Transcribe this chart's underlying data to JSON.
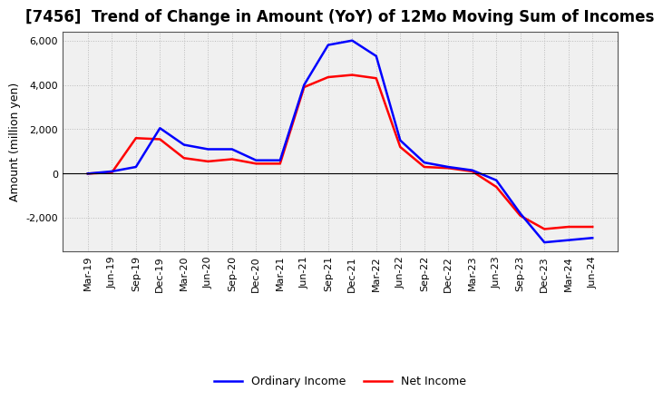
{
  "title": "[7456]  Trend of Change in Amount (YoY) of 12Mo Moving Sum of Incomes",
  "ylabel": "Amount (million yen)",
  "xlabels": [
    "Mar-19",
    "Jun-19",
    "Sep-19",
    "Dec-19",
    "Mar-20",
    "Jun-20",
    "Sep-20",
    "Dec-20",
    "Mar-21",
    "Jun-21",
    "Sep-21",
    "Dec-21",
    "Mar-22",
    "Jun-22",
    "Sep-22",
    "Dec-22",
    "Mar-23",
    "Jun-23",
    "Sep-23",
    "Dec-23",
    "Mar-24",
    "Jun-24"
  ],
  "ordinary_income": [
    0,
    100,
    300,
    2050,
    1300,
    1100,
    1100,
    600,
    600,
    4000,
    5800,
    6000,
    5300,
    1500,
    500,
    300,
    150,
    -300,
    -1800,
    -3100,
    -3000,
    -2900
  ],
  "net_income": [
    0,
    50,
    1600,
    1550,
    700,
    550,
    650,
    450,
    450,
    3900,
    4350,
    4450,
    4300,
    1200,
    300,
    250,
    100,
    -600,
    -1900,
    -2500,
    -2400,
    -2400
  ],
  "ordinary_color": "#0000ff",
  "net_color": "#ff0000",
  "ylim": [
    -3500,
    6400
  ],
  "yticks": [
    -2000,
    0,
    2000,
    4000,
    6000
  ],
  "grid_color": "#bbbbbb",
  "background_color": "#ffffff",
  "plot_bg_color": "#f0f0f0",
  "line_width": 1.8,
  "legend_ordinary": "Ordinary Income",
  "legend_net": "Net Income",
  "title_fontsize": 12,
  "label_fontsize": 8,
  "ylabel_fontsize": 9
}
